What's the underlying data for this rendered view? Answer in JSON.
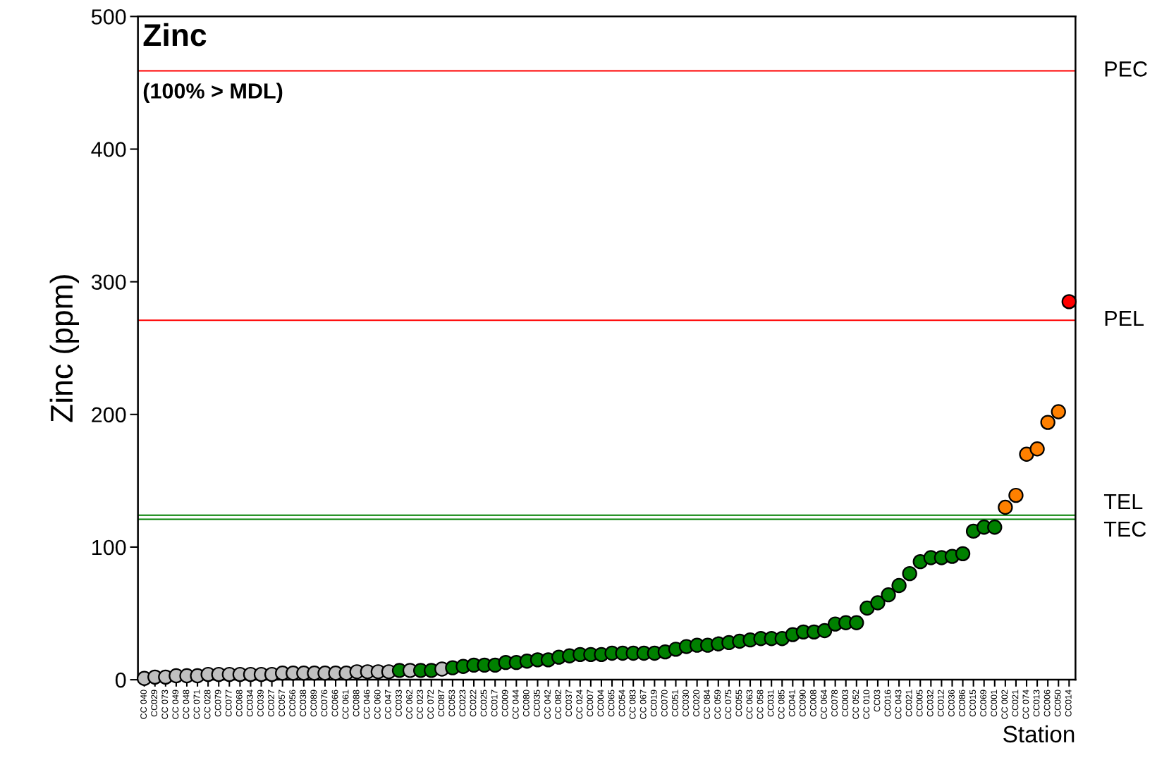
{
  "chart_data": {
    "type": "scatter",
    "title": "Zinc",
    "subtitle": "(100% > MDL)",
    "xlabel": "Station",
    "ylabel": "Zinc (ppm)",
    "categories": [
      "CC 040",
      "CC029",
      "CC 073",
      "CC 049",
      "CC 048",
      "CC 071",
      "CC 028",
      "CC079",
      "CC077",
      "CC068",
      "CC034",
      "CC039",
      "CC027",
      "CC057",
      "CC056",
      "CC038",
      "CC089",
      "CC076",
      "CC066",
      "CC 061",
      "CC088",
      "CC 046",
      "CC 060",
      "CC 047",
      "CC033",
      "CC 062",
      "CC 023",
      "CC 072",
      "CC087",
      "CC053",
      "CC023",
      "CC022",
      "CC025",
      "CC017",
      "CC009",
      "CC 044",
      "CC080",
      "CC035",
      "CC 042",
      "CC 082",
      "CC037",
      "CC 024",
      "CC007",
      "CC004",
      "CC065",
      "CC054",
      "CC 083",
      "CC 067",
      "CC019",
      "CC070",
      "CC051",
      "CC030",
      "CC020",
      "CC 084",
      "CC 059",
      "CC 075",
      "CC055",
      "CC 063",
      "CC 058",
      "CC031",
      "CC 085",
      "CC041",
      "CC090",
      "CC008",
      "CC 064",
      "CC078",
      "CC003",
      "CC 052",
      "CC 010",
      "CC03",
      "CC016",
      "CC 043",
      "CC021",
      "CC005",
      "CC032",
      "CC012",
      "CC036",
      "CC086",
      "CC015",
      "CC069",
      "CC001",
      "CC 002",
      "CC021",
      "CC 074",
      "CC013",
      "CC006",
      "CC050",
      "CC014"
    ],
    "values": [
      1,
      2,
      2,
      3,
      3,
      3,
      4,
      4,
      4,
      4,
      4,
      4,
      4,
      5,
      5,
      5,
      5,
      5,
      5,
      5,
      6,
      6,
      6,
      6,
      7,
      7,
      7,
      7,
      8,
      9,
      10,
      11,
      11,
      11,
      13,
      13,
      14,
      15,
      15,
      17,
      18,
      19,
      19,
      19,
      20,
      20,
      20,
      20,
      20,
      21,
      23,
      25,
      26,
      26,
      27,
      28,
      29,
      30,
      31,
      31,
      31,
      34,
      36,
      36,
      37,
      42,
      43,
      43,
      54,
      58,
      64,
      71,
      80,
      89,
      92,
      92,
      93,
      95,
      112,
      115,
      115,
      130,
      139,
      170,
      174,
      194,
      202,
      285
    ],
    "colors": [
      "#c0c0c0",
      "#c0c0c0",
      "#c0c0c0",
      "#c0c0c0",
      "#c0c0c0",
      "#c0c0c0",
      "#c0c0c0",
      "#c0c0c0",
      "#c0c0c0",
      "#c0c0c0",
      "#c0c0c0",
      "#c0c0c0",
      "#c0c0c0",
      "#c0c0c0",
      "#c0c0c0",
      "#c0c0c0",
      "#c0c0c0",
      "#c0c0c0",
      "#c0c0c0",
      "#c0c0c0",
      "#c0c0c0",
      "#c0c0c0",
      "#c0c0c0",
      "#c0c0c0",
      "#008000",
      "#c0c0c0",
      "#008000",
      "#008000",
      "#c0c0c0",
      "#008000",
      "#008000",
      "#008000",
      "#008000",
      "#008000",
      "#008000",
      "#008000",
      "#008000",
      "#008000",
      "#008000",
      "#008000",
      "#008000",
      "#008000",
      "#008000",
      "#008000",
      "#008000",
      "#008000",
      "#008000",
      "#008000",
      "#008000",
      "#008000",
      "#008000",
      "#008000",
      "#008000",
      "#008000",
      "#008000",
      "#008000",
      "#008000",
      "#008000",
      "#008000",
      "#008000",
      "#008000",
      "#008000",
      "#008000",
      "#008000",
      "#008000",
      "#008000",
      "#008000",
      "#008000",
      "#008000",
      "#008000",
      "#008000",
      "#008000",
      "#008000",
      "#008000",
      "#008000",
      "#008000",
      "#008000",
      "#008000",
      "#008000",
      "#008000",
      "#008000",
      "#ff8000",
      "#ff8000",
      "#ff8000",
      "#ff8000",
      "#ff8000",
      "#ff8000",
      "#ff0000"
    ],
    "ylim": [
      0,
      500
    ],
    "yticks": [
      0,
      100,
      200,
      300,
      400,
      500
    ],
    "grid": false,
    "legend": false,
    "marker": "circle",
    "ref_lines": [
      {
        "axis": "y",
        "value": 459,
        "label": "PEC",
        "color": "#ff0000"
      },
      {
        "axis": "y",
        "value": 271,
        "label": "PEL",
        "color": "#ff0000"
      },
      {
        "axis": "y",
        "value": 124,
        "label": "TEL",
        "color": "#008000"
      },
      {
        "axis": "y",
        "value": 121,
        "label": "TEC",
        "color": "#008000"
      }
    ]
  }
}
